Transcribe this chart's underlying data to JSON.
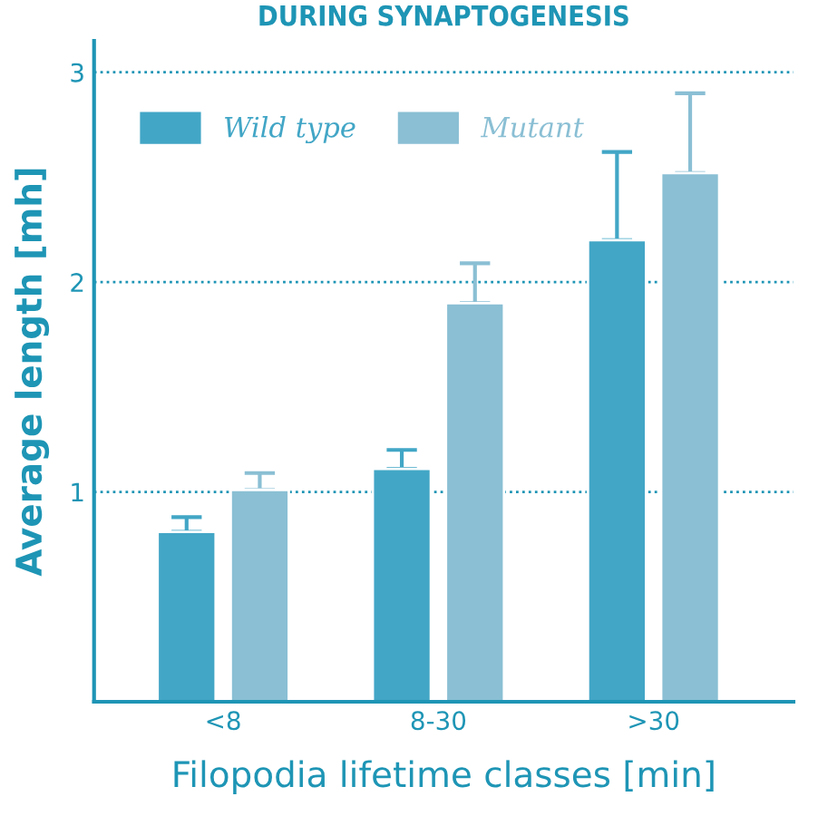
{
  "chart_data": {
    "type": "bar",
    "title": "DURING SYNAPTOGENESIS",
    "xlabel": "Filopodia lifetime classes [min]",
    "ylabel": "Average length [mh]",
    "categories": [
      "<8",
      "8-30",
      ">30"
    ],
    "series": [
      {
        "name": "Wild type",
        "color": "#42a6c6",
        "values": [
          0.81,
          1.11,
          2.2
        ],
        "errors": [
          [
            0.81,
            0.88
          ],
          [
            1.11,
            1.2
          ],
          [
            2.2,
            2.62
          ]
        ]
      },
      {
        "name": "Mutant",
        "color": "#8abfd4",
        "values": [
          1.01,
          1.9,
          2.52
        ],
        "errors": [
          [
            1.01,
            1.09
          ],
          [
            1.9,
            2.09
          ],
          [
            2.52,
            2.9
          ]
        ]
      }
    ],
    "ylim": [
      0,
      3.15
    ],
    "yticks": [
      1,
      2,
      3
    ],
    "grid": "y",
    "legend": "top left"
  }
}
